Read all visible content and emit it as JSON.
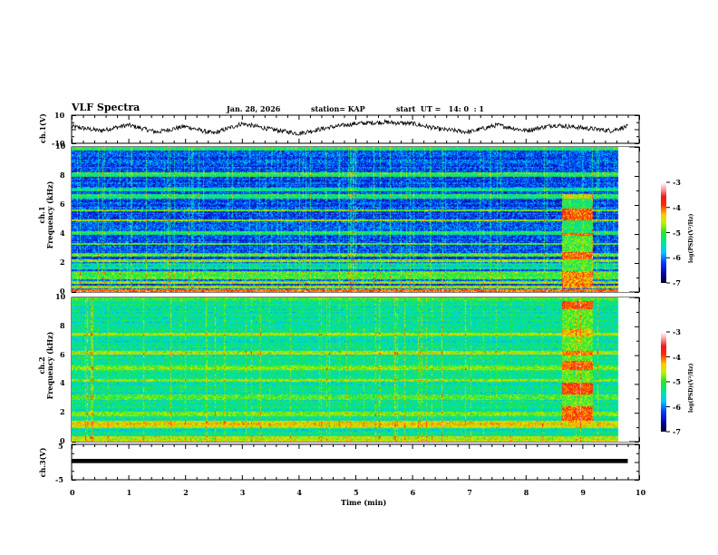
{
  "header": {
    "title": "VLF Spectra",
    "date": "Jan. 28, 2026",
    "station": "station= KAP",
    "start": "start  UT =   14: 0  : 1"
  },
  "chart_data": [
    {
      "type": "line",
      "name": "ch1-waveform",
      "ylabel": "ch.1(V)",
      "ylim": [
        -10,
        10
      ],
      "yticks": [
        "10",
        "-10"
      ],
      "xlim": [
        0,
        10
      ],
      "data_end_min": 9.8,
      "description_series": "noisy voltage trace wandering between about -5 and 6 V",
      "approx_envelope_minutes": [
        0,
        0.5,
        1,
        1.5,
        2,
        2.5,
        3,
        3.5,
        4,
        4.5,
        5,
        5.5,
        6,
        6.5,
        7,
        7.5,
        8,
        8.5,
        9,
        9.5,
        9.8
      ],
      "approx_values_v": [
        2,
        -1,
        3,
        -2,
        2,
        -3,
        4,
        0,
        -3,
        1,
        4,
        5,
        4,
        0,
        -2,
        3,
        -1,
        3,
        1,
        -1,
        2
      ]
    },
    {
      "type": "heatmap",
      "name": "ch1-spectrogram",
      "ylabel_line1": "ch.1",
      "ylabel_line2": "Frequency  (kHz)",
      "ylim": [
        0,
        10
      ],
      "yticks": [
        "0",
        "2",
        "4",
        "6",
        "8",
        "10"
      ],
      "xlim": [
        0,
        10
      ],
      "data_end_min": 9.8,
      "colorbar": {
        "label": "log(PSD)(V²/Hz)",
        "range": [
          -7,
          -3
        ],
        "ticks": [
          "-3",
          "-4",
          "-5",
          "-6",
          "-7"
        ]
      },
      "background_level": -6.2,
      "bands_khz_level": [
        [
          0.0,
          0.25,
          -4.0
        ],
        [
          0.3,
          0.5,
          -4.6
        ],
        [
          0.6,
          0.8,
          -4.8
        ],
        [
          0.9,
          1.5,
          -5.0
        ],
        [
          1.6,
          2.0,
          -5.5
        ],
        [
          2.1,
          2.3,
          -4.7
        ],
        [
          2.5,
          2.7,
          -5.0
        ],
        [
          3.3,
          3.4,
          -5.0
        ],
        [
          4.0,
          4.2,
          -5.3
        ],
        [
          4.9,
          5.0,
          -4.8
        ],
        [
          5.6,
          5.7,
          -4.8
        ],
        [
          6.5,
          6.8,
          -5.2
        ],
        [
          7.0,
          7.2,
          -5.5
        ],
        [
          8.0,
          8.3,
          -5.2
        ],
        [
          9.8,
          10.0,
          -5.3
        ]
      ],
      "burst_window_min": [
        8.8,
        9.35
      ],
      "burst_bands_khz_level": [
        [
          0.3,
          1.5,
          -4.2
        ],
        [
          1.5,
          4.0,
          -5.0
        ],
        [
          2.3,
          2.8,
          -4.0
        ],
        [
          3.9,
          4.1,
          -4.0
        ],
        [
          5.0,
          5.8,
          -4.0
        ],
        [
          6.5,
          6.8,
          -4.5
        ],
        [
          4.0,
          6.5,
          -5.2
        ]
      ]
    },
    {
      "type": "heatmap",
      "name": "ch2-spectrogram",
      "ylabel_line1": "ch.2",
      "ylabel_line2": "Frequency  (kHz)",
      "ylim": [
        0,
        10
      ],
      "yticks": [
        "0",
        "2",
        "4",
        "6",
        "8",
        "10"
      ],
      "xlim": [
        0,
        10
      ],
      "data_end_min": 9.8,
      "colorbar": {
        "label": "log(PSD)(V²/Hz)",
        "range": [
          -7,
          -3
        ],
        "ticks": [
          "-3",
          "-4",
          "-5",
          "-6",
          "-7"
        ]
      },
      "background_level": -5.4,
      "bands_khz_level": [
        [
          0.0,
          0.4,
          -4.6
        ],
        [
          1.0,
          1.5,
          -4.4
        ],
        [
          1.8,
          2.1,
          -4.8
        ],
        [
          2.9,
          3.3,
          -4.9
        ],
        [
          4.2,
          4.4,
          -4.8
        ],
        [
          5.0,
          5.3,
          -4.8
        ],
        [
          6.1,
          6.3,
          -4.6
        ],
        [
          7.4,
          7.6,
          -4.6
        ],
        [
          9.8,
          10.0,
          -5.0
        ]
      ],
      "burst_window_min": [
        8.8,
        9.35
      ],
      "burst_bands_khz_level": [
        [
          1.5,
          2.5,
          -4.0
        ],
        [
          3.3,
          4.1,
          -3.9
        ],
        [
          5.0,
          5.6,
          -4.0
        ],
        [
          6.0,
          6.3,
          -4.1
        ],
        [
          7.3,
          7.8,
          -4.3
        ],
        [
          9.2,
          9.8,
          -3.9
        ],
        [
          2.5,
          9.8,
          -4.9
        ]
      ]
    },
    {
      "type": "line",
      "name": "ch3-waveform",
      "ylabel": "ch.3(V)",
      "ylim": [
        -5,
        5
      ],
      "yticks": [
        "5",
        "-5"
      ],
      "xlim": [
        0,
        10
      ],
      "data_end_min": 9.8,
      "band_v": [
        -0.3,
        0.9
      ]
    }
  ],
  "xaxis": {
    "label": "Time  (min)",
    "ticks": [
      "0",
      "1",
      "2",
      "3",
      "4",
      "5",
      "6",
      "7",
      "8",
      "9",
      "10"
    ]
  },
  "colors": {
    "axis": "#000000",
    "trace": "#000000",
    "background": "#ffffff"
  }
}
